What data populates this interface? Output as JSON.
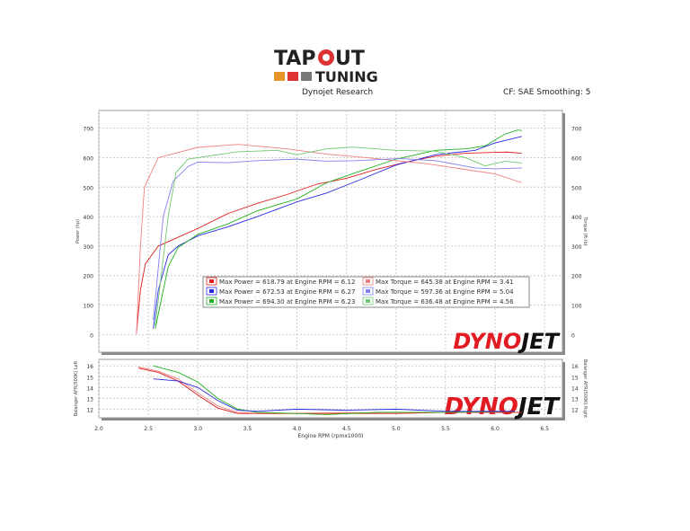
{
  "header": {
    "logo_text": "TAPOUT TUNING",
    "left_caption": "Dynojet Research",
    "right_caption": "CF: SAE Smoothing: 5"
  },
  "watermark": "DYNOJET",
  "colors": {
    "run1": "#e02020",
    "run2": "#2a2ae0",
    "run3": "#20b020",
    "run1_light": "#f08080",
    "run2_light": "#8080f0",
    "run3_light": "#70c870"
  },
  "chart_data": [
    {
      "type": "line",
      "xlabel": "Engine RPM (rpmx1000)",
      "ylabel": "Power (hp)",
      "y2label": "Torque (ft-lb)",
      "xlim": [
        2.0,
        6.68
      ],
      "ylim": [
        -60,
        760
      ],
      "grid": true,
      "xticks": [
        "2.0",
        "2.5",
        "3.0",
        "3.5",
        "4.0",
        "4.5",
        "5.0",
        "5.5",
        "6.0",
        "6.5"
      ],
      "yticks": [
        "0",
        "100",
        "200",
        "300",
        "400",
        "500",
        "600",
        "700"
      ],
      "legend": [
        "Max Power = 618.79 at Engine RPM = 6.12",
        "Max Power = 672.53 at Engine RPM = 6.27",
        "Max Power = 694.30 at Engine RPM = 6.23",
        "Max Torque = 645.38 at Engine RPM = 3.41",
        "Max Torque = 597.36 at Engine RPM = 5.04",
        "Max Torque = 636.48 at Engine RPM = 4.56"
      ],
      "legend_placement": "center",
      "series": [
        {
          "kind": "power",
          "color": "#e02020",
          "points": [
            [
              2.38,
              5
            ],
            [
              2.42,
              150
            ],
            [
              2.47,
              240
            ],
            [
              2.6,
              300
            ],
            [
              2.8,
              330
            ],
            [
              3.0,
              360
            ],
            [
              3.3,
              410
            ],
            [
              3.6,
              445
            ],
            [
              3.9,
              475
            ],
            [
              4.2,
              510
            ],
            [
              4.5,
              530
            ],
            [
              4.8,
              560
            ],
            [
              5.1,
              585
            ],
            [
              5.4,
              605
            ],
            [
              5.7,
              615
            ],
            [
              6.0,
              618
            ],
            [
              6.12,
              619
            ],
            [
              6.27,
              615
            ]
          ]
        },
        {
          "kind": "power",
          "color": "#2a2ae0",
          "points": [
            [
              2.55,
              20
            ],
            [
              2.6,
              150
            ],
            [
              2.7,
              270
            ],
            [
              2.8,
              300
            ],
            [
              3.0,
              335
            ],
            [
              3.3,
              365
            ],
            [
              3.6,
              400
            ],
            [
              4.0,
              450
            ],
            [
              4.3,
              480
            ],
            [
              4.6,
              520
            ],
            [
              5.0,
              575
            ],
            [
              5.4,
              610
            ],
            [
              5.8,
              625
            ],
            [
              6.0,
              650
            ],
            [
              6.27,
              672
            ]
          ]
        },
        {
          "kind": "power",
          "color": "#20b020",
          "points": [
            [
              2.57,
              20
            ],
            [
              2.7,
              230
            ],
            [
              2.8,
              295
            ],
            [
              3.0,
              340
            ],
            [
              3.3,
              375
            ],
            [
              3.6,
              420
            ],
            [
              4.0,
              460
            ],
            [
              4.3,
              515
            ],
            [
              4.6,
              550
            ],
            [
              5.0,
              595
            ],
            [
              5.4,
              625
            ],
            [
              5.7,
              630
            ],
            [
              5.9,
              640
            ],
            [
              6.1,
              680
            ],
            [
              6.23,
              694
            ],
            [
              6.27,
              692
            ]
          ]
        },
        {
          "kind": "torque",
          "color": "#f08080",
          "points": [
            [
              2.38,
              0
            ],
            [
              2.42,
              300
            ],
            [
              2.46,
              500
            ],
            [
              2.6,
              600
            ],
            [
              3.0,
              635
            ],
            [
              3.41,
              645
            ],
            [
              3.9,
              630
            ],
            [
              4.3,
              612
            ],
            [
              4.7,
              600
            ],
            [
              5.0,
              590
            ],
            [
              5.3,
              580
            ],
            [
              5.6,
              565
            ],
            [
              6.0,
              545
            ],
            [
              6.27,
              515
            ]
          ]
        },
        {
          "kind": "torque",
          "color": "#8080f0",
          "points": [
            [
              2.55,
              50
            ],
            [
              2.65,
              400
            ],
            [
              2.75,
              520
            ],
            [
              2.9,
              570
            ],
            [
              3.0,
              585
            ],
            [
              3.3,
              583
            ],
            [
              3.6,
              590
            ],
            [
              4.0,
              595
            ],
            [
              4.3,
              588
            ],
            [
              4.6,
              590
            ],
            [
              5.04,
              597
            ],
            [
              5.4,
              590
            ],
            [
              5.8,
              565
            ],
            [
              6.0,
              562
            ],
            [
              6.27,
              565
            ]
          ]
        },
        {
          "kind": "torque",
          "color": "#70c870",
          "points": [
            [
              2.57,
              30
            ],
            [
              2.7,
              400
            ],
            [
              2.78,
              550
            ],
            [
              2.9,
              595
            ],
            [
              3.0,
              600
            ],
            [
              3.4,
              620
            ],
            [
              3.8,
              625
            ],
            [
              4.0,
              610
            ],
            [
              4.3,
              630
            ],
            [
              4.56,
              636
            ],
            [
              5.0,
              625
            ],
            [
              5.4,
              622
            ],
            [
              5.7,
              600
            ],
            [
              5.9,
              572
            ],
            [
              6.1,
              588
            ],
            [
              6.27,
              582
            ]
          ]
        }
      ]
    },
    {
      "type": "line",
      "xlabel": "Engine RPM (rpmx1000)",
      "ylabel": "Balanger AFR(500K) Left",
      "y2label": "Balanger AFR(500K) Right",
      "xlim": [
        2.0,
        6.68
      ],
      "ylim": [
        11.2,
        16.6
      ],
      "grid": true,
      "yticks": [
        "12",
        "13",
        "14",
        "15",
        "16"
      ],
      "series": [
        {
          "color": "#f08080",
          "points": [
            [
              2.4,
              15.9
            ],
            [
              2.6,
              15.5
            ],
            [
              2.8,
              14.8
            ],
            [
              3.0,
              13.5
            ],
            [
              3.2,
              12.3
            ],
            [
              3.4,
              11.7
            ],
            [
              3.6,
              11.6
            ],
            [
              4.0,
              11.6
            ],
            [
              4.5,
              11.7
            ],
            [
              5.0,
              11.6
            ],
            [
              5.5,
              11.7
            ],
            [
              6.0,
              11.7
            ],
            [
              6.27,
              11.7
            ]
          ]
        },
        {
          "color": "#e02020",
          "points": [
            [
              2.4,
              15.8
            ],
            [
              2.6,
              15.4
            ],
            [
              2.8,
              14.6
            ],
            [
              3.0,
              13.3
            ],
            [
              3.2,
              12.1
            ],
            [
              3.4,
              11.6
            ],
            [
              3.6,
              11.6
            ],
            [
              4.0,
              11.6
            ],
            [
              4.5,
              11.6
            ],
            [
              5.0,
              11.6
            ],
            [
              5.5,
              11.7
            ],
            [
              6.0,
              11.7
            ],
            [
              6.27,
              11.7
            ]
          ]
        },
        {
          "color": "#20b020",
          "points": [
            [
              2.55,
              16.0
            ],
            [
              2.8,
              15.4
            ],
            [
              3.0,
              14.5
            ],
            [
              3.2,
              13.0
            ],
            [
              3.4,
              12.0
            ],
            [
              3.6,
              11.7
            ],
            [
              4.0,
              11.6
            ],
            [
              4.3,
              11.5
            ],
            [
              4.8,
              11.7
            ],
            [
              5.5,
              11.7
            ],
            [
              6.2,
              11.8
            ]
          ]
        },
        {
          "color": "#2a2ae0",
          "points": [
            [
              2.55,
              14.8
            ],
            [
              2.8,
              14.6
            ],
            [
              3.0,
              14.0
            ],
            [
              3.2,
              12.8
            ],
            [
              3.4,
              11.9
            ],
            [
              3.6,
              11.8
            ],
            [
              4.0,
              12.0
            ],
            [
              4.5,
              11.9
            ],
            [
              5.0,
              12.0
            ],
            [
              5.5,
              11.8
            ],
            [
              6.2,
              11.8
            ]
          ]
        }
      ]
    }
  ]
}
